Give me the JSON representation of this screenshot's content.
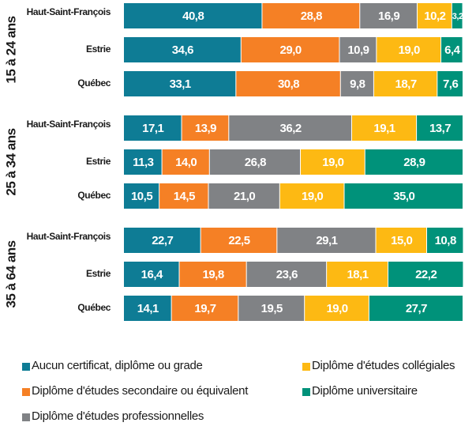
{
  "chart_data": {
    "type": "bar",
    "stacked": true,
    "orientation": "horizontal",
    "groups": [
      "15 à 24 ans",
      "25 à 34 ans",
      "35 à 64 ans"
    ],
    "categories": [
      "Haut-Saint-François",
      "Estrie",
      "Québec",
      "Haut-Saint-François",
      "Estrie",
      "Québec",
      "Haut-Saint-François",
      "Estrie",
      "Québec"
    ],
    "xlim": [
      0,
      100
    ],
    "series": [
      {
        "name": "Aucun certificat, diplôme ou grade",
        "color": "#0e7c95",
        "values": [
          40.8,
          34.6,
          33.1,
          17.1,
          11.3,
          10.5,
          22.7,
          16.4,
          14.1
        ],
        "value_labels": [
          "40,8",
          "34,6",
          "33,1",
          "17,1",
          "11,3",
          "10,5",
          "22,7",
          "16,4",
          "14,1"
        ]
      },
      {
        "name": "Diplôme d'études secondaire ou équivalent",
        "color": "#f58025",
        "values": [
          28.8,
          29.0,
          30.8,
          13.9,
          14.0,
          14.5,
          22.5,
          19.8,
          19.7
        ],
        "value_labels": [
          "28,8",
          "29,0",
          "30,8",
          "13,9",
          "14,0",
          "14,5",
          "22,5",
          "19,8",
          "19,7"
        ]
      },
      {
        "name": "Diplôme d'études professionnelles",
        "color": "#808285",
        "values": [
          16.9,
          10.9,
          9.8,
          36.2,
          26.8,
          21.0,
          29.1,
          23.6,
          19.5
        ],
        "value_labels": [
          "16,9",
          "10,9",
          "9,8",
          "36,2",
          "26,8",
          "21,0",
          "29,1",
          "23,6",
          "19,5"
        ]
      },
      {
        "name": "Diplôme d'études collégiales",
        "color": "#fdb913",
        "values": [
          10.2,
          19.0,
          18.7,
          19.1,
          19.0,
          19.0,
          15.0,
          18.1,
          19.0
        ],
        "value_labels": [
          "10,2",
          "19,0",
          "18,7",
          "19,1",
          "19,0",
          "19,0",
          "15,0",
          "18,1",
          "19,0"
        ]
      },
      {
        "name": "Diplôme universitaire",
        "color": "#00927a",
        "values": [
          3.2,
          6.4,
          7.6,
          13.7,
          28.9,
          35.0,
          10.8,
          22.2,
          27.7
        ],
        "value_labels": [
          "3,2",
          "6,4",
          "7,6",
          "13,7",
          "28,9",
          "35,0",
          "10,8",
          "22,2",
          "27,7"
        ]
      }
    ]
  }
}
